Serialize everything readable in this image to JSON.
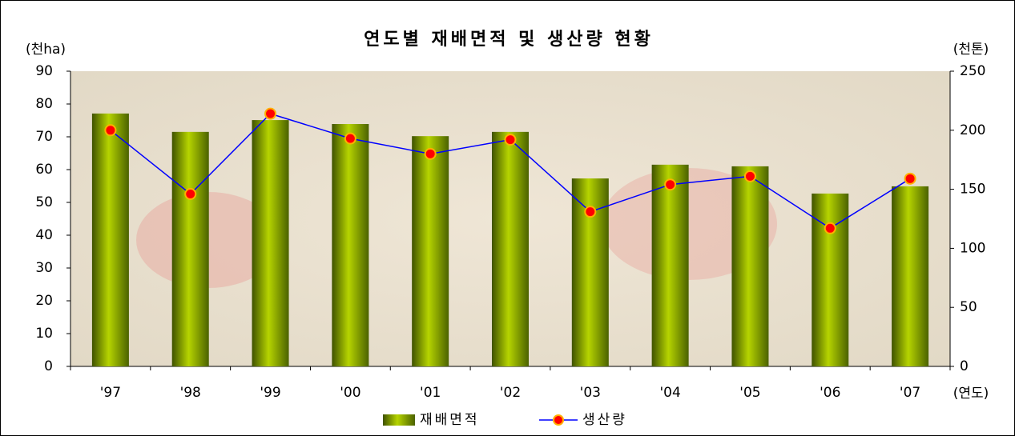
{
  "chart_data": {
    "type": "bar",
    "title": "연도별 재배면적 및 생산량 현황",
    "y_label": "(천ha)",
    "y2_label": "(천톤)",
    "x_label": "(연도)",
    "categories": [
      "'97",
      "'98",
      "'99",
      "'00",
      "'01",
      "'02",
      "'03",
      "'04",
      "'05",
      "'06",
      "'07"
    ],
    "series": [
      {
        "name": "재배면적",
        "type": "bar",
        "color": "#7a9a00",
        "axis": "y",
        "values": [
          77.1,
          71.5,
          75.1,
          73.9,
          70.2,
          71.5,
          57.3,
          61.5,
          61.0,
          52.7,
          54.9
        ]
      },
      {
        "name": "생산량",
        "type": "line",
        "color": "#0000ff",
        "marker_color": "#ff0000",
        "axis": "y2",
        "values": [
          200,
          146,
          214,
          193,
          180,
          192,
          131,
          154,
          161,
          117,
          159
        ]
      }
    ],
    "ylim": [
      0,
      90
    ],
    "yticks": [
      0,
      10,
      20,
      30,
      40,
      50,
      60,
      70,
      80,
      90
    ],
    "y2lim": [
      0,
      250
    ],
    "y2ticks": [
      0,
      50,
      100,
      150,
      200,
      250
    ],
    "legend": "bottom"
  }
}
